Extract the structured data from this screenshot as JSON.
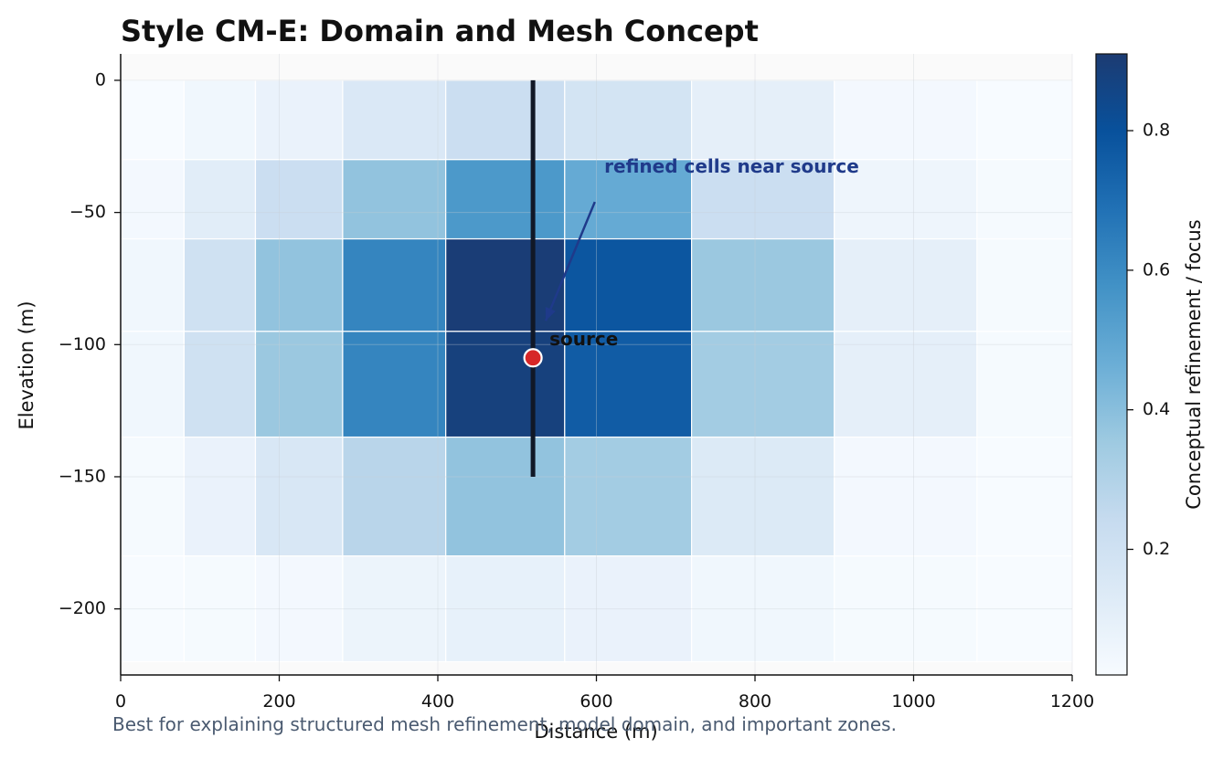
{
  "chart_data": {
    "type": "heatmap",
    "title": "Style CM-E: Domain and Mesh Concept",
    "xlabel": "Distance (m)",
    "ylabel": "Elevation (m)",
    "xlim": [
      0,
      1200
    ],
    "ylim": [
      -225,
      10
    ],
    "x_ticks": [
      0,
      200,
      400,
      600,
      800,
      1000,
      1200
    ],
    "y_ticks": [
      0,
      -50,
      -100,
      -150,
      -200
    ],
    "x_edges": [
      0,
      80,
      170,
      280,
      410,
      560,
      720,
      900,
      1080,
      1200
    ],
    "y_edges": [
      0,
      -30,
      -60,
      -95,
      -135,
      -180,
      -220
    ],
    "values": [
      [
        0.02,
        0.05,
        0.08,
        0.15,
        0.22,
        0.18,
        0.1,
        0.04,
        0.02
      ],
      [
        0.04,
        0.12,
        0.22,
        0.38,
        0.55,
        0.48,
        0.22,
        0.06,
        0.03
      ],
      [
        0.05,
        0.2,
        0.38,
        0.62,
        0.9,
        0.78,
        0.36,
        0.1,
        0.03
      ],
      [
        0.05,
        0.2,
        0.36,
        0.62,
        0.88,
        0.76,
        0.34,
        0.1,
        0.03
      ],
      [
        0.03,
        0.08,
        0.16,
        0.28,
        0.38,
        0.34,
        0.14,
        0.04,
        0.02
      ],
      [
        0.02,
        0.03,
        0.04,
        0.07,
        0.09,
        0.08,
        0.05,
        0.03,
        0.02
      ]
    ],
    "colorbar": {
      "label": "Conceptual refinement / focus",
      "range": [
        0.02,
        0.91
      ],
      "ticks": [
        0.2,
        0.4,
        0.6,
        0.8
      ],
      "colormap": "Blues"
    },
    "well": {
      "x": 520,
      "y_top": 0,
      "y_bottom": -150,
      "color": "#111827"
    },
    "source": {
      "x": 520,
      "y": -105,
      "label": "source",
      "color": "#d62728"
    },
    "annotation": {
      "text": "refined cells near source",
      "text_x": 610,
      "text_y": -33,
      "arrow_from": [
        598,
        -46
      ],
      "arrow_to": [
        536,
        -91
      ],
      "color": "#1f3a8a"
    },
    "grid": true
  },
  "caption": "Best for explaining structured mesh refinement, model domain, and important zones."
}
